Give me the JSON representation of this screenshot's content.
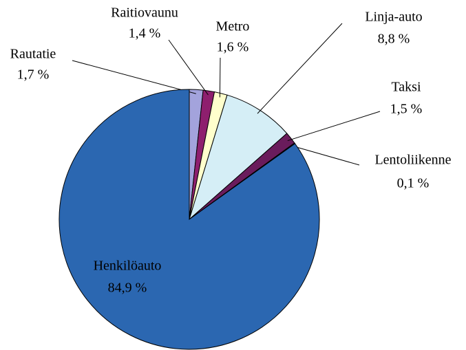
{
  "chart_data": {
    "type": "pie",
    "categories": [
      "Rautatie",
      "Raitiovaunu",
      "Metro",
      "Linja-auto",
      "Taksi",
      "Lentoliikenne",
      "Henkilöauto"
    ],
    "values": [
      1.7,
      1.4,
      1.6,
      8.8,
      1.5,
      0.1,
      84.9
    ],
    "value_labels": [
      "1,7 %",
      "1,4 %",
      "1,6 %",
      "8,8 %",
      "1,5 %",
      "0,1 %",
      "84,9 %"
    ],
    "colors": [
      "#a3a3dc",
      "#8e1f6e",
      "#ffffcc",
      "#d5eef6",
      "#6a1c5c",
      "#3a2a7a",
      "#2b67b1"
    ]
  }
}
